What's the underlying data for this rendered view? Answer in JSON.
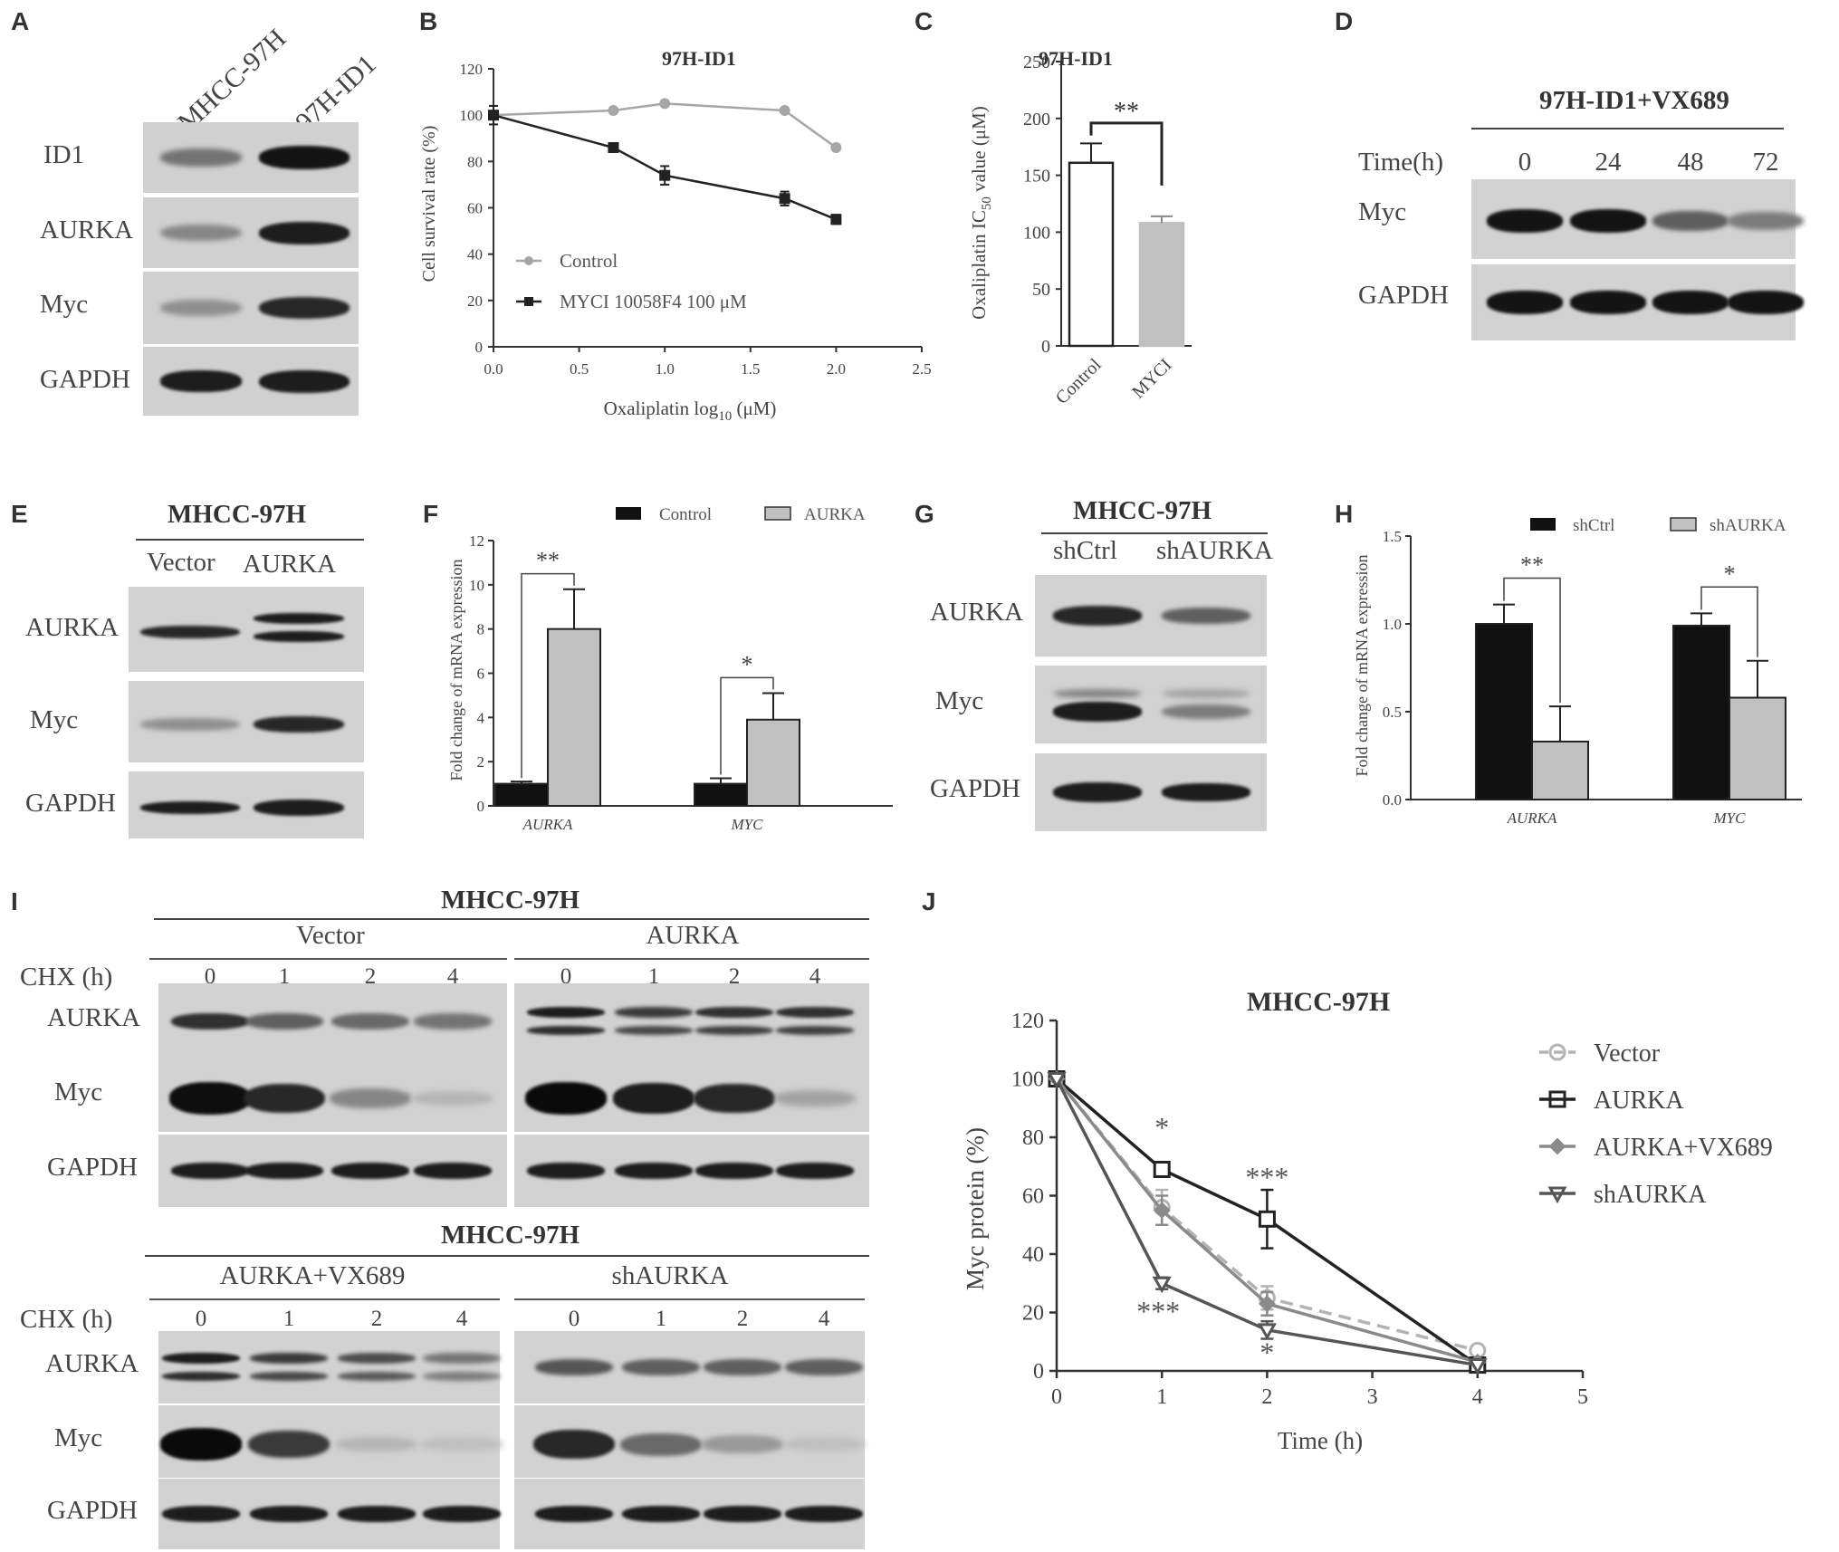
{
  "panels": {
    "A": {
      "label": "A",
      "lanes": [
        "MHCC-97H",
        "97H-ID1"
      ],
      "rows": [
        {
          "name": "ID1",
          "bands": [
            0.45,
            0.95
          ]
        },
        {
          "name": "AURKA",
          "bands": [
            0.35,
            0.9
          ]
        },
        {
          "name": "Myc",
          "bands": [
            0.3,
            0.85
          ]
        },
        {
          "name": "GAPDH",
          "bands": [
            0.9,
            0.9
          ]
        }
      ]
    },
    "B": {
      "label": "B",
      "title": "97H-ID1",
      "xlabel_main": "Oxaliplatin log",
      "xlabel_sub": "10",
      "xlabel_unit": " (μM)",
      "ylabel": "Cell survival rate (%)",
      "xticks": [
        "0.0",
        "0.5",
        "1.0",
        "1.5",
        "2.0",
        "2.5"
      ],
      "yticks": [
        "0",
        "20",
        "40",
        "60",
        "80",
        "100",
        "120"
      ],
      "legend": [
        "Control",
        "MYCI 10058F4 100  μM"
      ]
    },
    "C": {
      "label": "C",
      "title": "97H-ID1",
      "ylabel_main": "Oxaliplatin  IC",
      "ylabel_sub": "50",
      "ylabel_tail": " value (μM)",
      "yticks": [
        "0",
        "50",
        "100",
        "150",
        "200",
        "250"
      ],
      "categories": [
        "Control",
        "MYCI"
      ],
      "sig": "**"
    },
    "D": {
      "label": "D",
      "title": "97H-ID1+VX689",
      "time_label": "Time(h)",
      "times": [
        "0",
        "24",
        "48",
        "72"
      ],
      "rows": [
        {
          "name": "Myc",
          "bands": [
            0.95,
            0.95,
            0.55,
            0.4
          ]
        },
        {
          "name": "GAPDH",
          "bands": [
            0.95,
            0.95,
            0.95,
            0.95
          ]
        }
      ]
    },
    "E": {
      "label": "E",
      "title": "MHCC-97H",
      "lanes": [
        "Vector",
        "AURKA"
      ],
      "rows": [
        {
          "name": "AURKA",
          "bands": [
            0.85,
            0.9
          ]
        },
        {
          "name": "Myc",
          "bands": [
            0.3,
            0.85
          ]
        },
        {
          "name": "GAPDH",
          "bands": [
            0.9,
            0.9
          ]
        }
      ]
    },
    "F": {
      "label": "F",
      "ylabel": "Fold change of mRNA expression",
      "yticks": [
        "0",
        "2",
        "4",
        "6",
        "8",
        "10",
        "12"
      ],
      "legend": [
        "Control",
        "AURKA"
      ],
      "genes": [
        "AURKA",
        "MYC"
      ],
      "sig": [
        "**",
        "*"
      ]
    },
    "G": {
      "label": "G",
      "title": "MHCC-97H",
      "lanes": [
        "shCtrl",
        "shAURKA"
      ],
      "rows": [
        {
          "name": "AURKA",
          "bands": [
            0.85,
            0.55
          ]
        },
        {
          "name": "Myc",
          "bands": [
            0.9,
            0.4
          ]
        },
        {
          "name": "GAPDH",
          "bands": [
            0.9,
            0.9
          ]
        }
      ]
    },
    "H": {
      "label": "H",
      "ylabel": "Fold change of mRNA expression",
      "yticks": [
        "0.0",
        "0.5",
        "1.0",
        "1.5"
      ],
      "legend": [
        "shCtrl",
        "shAURKA"
      ],
      "genes": [
        "AURKA",
        "MYC"
      ],
      "sig": [
        "**",
        "*"
      ]
    },
    "I": {
      "label": "I",
      "title": "MHCC-97H",
      "chx_label": "CHX (h)",
      "times": [
        "0",
        "1",
        "2",
        "4"
      ],
      "groups": [
        "Vector",
        "AURKA",
        "AURKA+VX689",
        "shAURKA"
      ],
      "rows": [
        "AURKA",
        "Myc",
        "GAPDH"
      ]
    },
    "J": {
      "label": "J",
      "title": "MHCC-97H",
      "xlabel": "Time (h)",
      "ylabel": "Myc protein (%)",
      "xticks": [
        "0",
        "1",
        "2",
        "3",
        "4",
        "5"
      ],
      "yticks": [
        "0",
        "20",
        "40",
        "60",
        "80",
        "100",
        "120"
      ],
      "legend": [
        "Vector",
        "AURKA",
        "AURKA+VX689",
        "shAURKA"
      ],
      "stars": [
        "*",
        "***",
        "***",
        "*"
      ]
    }
  },
  "chart_data": [
    {
      "panel": "B",
      "type": "line",
      "title": "97H-ID1",
      "xlabel": "Oxaliplatin log10 (μM)",
      "ylabel": "Cell survival rate (%)",
      "xlim": [
        0,
        2.5
      ],
      "ylim": [
        0,
        120
      ],
      "series": [
        {
          "name": "Control",
          "color": "#a6a6a6",
          "x": [
            0.0,
            0.7,
            1.0,
            1.7,
            2.0
          ],
          "y": [
            100,
            102,
            105,
            102,
            86
          ]
        },
        {
          "name": "MYCI 10058F4 100 μM",
          "color": "#222222",
          "x": [
            0.0,
            0.7,
            1.0,
            1.7,
            2.0
          ],
          "y": [
            100,
            86,
            74,
            64,
            55
          ],
          "err": [
            4,
            1,
            4,
            3,
            2
          ]
        }
      ]
    },
    {
      "panel": "C",
      "type": "bar",
      "title": "97H-ID1",
      "categories": [
        "Control",
        "MYCI"
      ],
      "values": [
        161,
        108
      ],
      "err": [
        17,
        6
      ],
      "ylim": [
        0,
        250
      ],
      "colors": [
        "#ffffff",
        "#c0c0c0"
      ]
    },
    {
      "panel": "F",
      "type": "bar",
      "categories": [
        "AURKA",
        "MYC"
      ],
      "series": [
        {
          "name": "Control",
          "color": "#111111",
          "values": [
            1.0,
            1.0
          ],
          "err": [
            0.1,
            0.25
          ]
        },
        {
          "name": "AURKA",
          "color": "#c0c0c0",
          "values": [
            8.0,
            3.9
          ],
          "err": [
            1.8,
            1.2
          ]
        }
      ],
      "ylim": [
        0,
        12
      ]
    },
    {
      "panel": "H",
      "type": "bar",
      "categories": [
        "AURKA",
        "MYC"
      ],
      "series": [
        {
          "name": "shCtrl",
          "color": "#111111",
          "values": [
            1.0,
            0.99
          ],
          "err": [
            0.11,
            0.07
          ]
        },
        {
          "name": "shAURKA",
          "color": "#c0c0c0",
          "values": [
            0.33,
            0.58
          ],
          "err": [
            0.2,
            0.21
          ]
        }
      ],
      "ylim": [
        0,
        1.5
      ]
    },
    {
      "panel": "J",
      "type": "line",
      "title": "MHCC-97H",
      "xlabel": "Time (h)",
      "ylabel": "Myc protein (%)",
      "xlim": [
        0,
        5
      ],
      "ylim": [
        0,
        120
      ],
      "series": [
        {
          "name": "Vector",
          "color": "#b3b3b3",
          "x": [
            0,
            1,
            2,
            4
          ],
          "y": [
            100,
            56,
            25,
            7
          ]
        },
        {
          "name": "AURKA",
          "color": "#222222",
          "x": [
            0,
            1,
            2,
            4
          ],
          "y": [
            100,
            69,
            52,
            2
          ]
        },
        {
          "name": "AURKA+VX689",
          "color": "#8a8a8a",
          "x": [
            0,
            1,
            2,
            4
          ],
          "y": [
            100,
            55,
            23,
            3
          ]
        },
        {
          "name": "shAURKA",
          "color": "#555555",
          "x": [
            0,
            1,
            2,
            4
          ],
          "y": [
            100,
            30,
            14,
            2
          ]
        }
      ]
    }
  ]
}
